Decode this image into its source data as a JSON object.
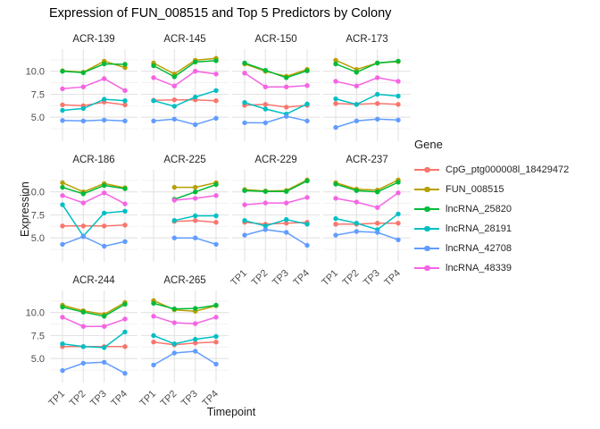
{
  "chart_data": {
    "type": "line",
    "title": "Expression of FUN_008515 and Top 5 Predictors by Colony",
    "xlabel": "Timepoint",
    "ylabel": "Expression",
    "legend_title": "Gene",
    "legend_position": "right",
    "x_categories": [
      "TP1",
      "TP2",
      "TP3",
      "TP4"
    ],
    "y_ticks": [
      10.0,
      7.5,
      5.0
    ],
    "y_tick_labels": [
      "10.0",
      "7.5",
      "5.0"
    ],
    "ylim": [
      2.4,
      12.4
    ],
    "grid": "on",
    "y_major_gridlines": [
      5.0,
      7.5,
      10.0
    ],
    "y_minor_gridlines": [
      3.75,
      6.25,
      8.75,
      11.25
    ],
    "grid_major_color": "#e3e3e3",
    "grid_minor_color": "#f0f0f0",
    "series": [
      {
        "name": "CpG_ptg000008l_18429472",
        "color": "#F8766D"
      },
      {
        "name": "FUN_008515",
        "color": "#B79F00"
      },
      {
        "name": "lncRNA_25820",
        "color": "#00BA38"
      },
      {
        "name": "lncRNA_28191",
        "color": "#00BFC4"
      },
      {
        "name": "lncRNA_42708",
        "color": "#619CFF"
      },
      {
        "name": "lncRNA_48339",
        "color": "#F564E3"
      }
    ],
    "facets": [
      {
        "label": "ACR-139",
        "values": [
          [
            6.35,
            6.25,
            6.65,
            6.35
          ],
          [
            10.05,
            9.9,
            11.1,
            10.4
          ],
          [
            10.0,
            9.85,
            10.8,
            10.75
          ],
          [
            5.75,
            5.95,
            6.95,
            6.8
          ],
          [
            4.65,
            4.6,
            4.7,
            4.6
          ],
          [
            8.1,
            8.3,
            9.2,
            7.9
          ]
        ]
      },
      {
        "label": "ACR-145",
        "values": [
          [
            6.85,
            6.9,
            6.9,
            6.8
          ],
          [
            10.9,
            9.7,
            11.2,
            11.4
          ],
          [
            10.6,
            9.4,
            11.0,
            11.15
          ],
          [
            6.8,
            6.2,
            7.2,
            7.9
          ],
          [
            4.6,
            4.8,
            4.2,
            4.9
          ],
          [
            9.3,
            8.4,
            10.0,
            9.7
          ]
        ]
      },
      {
        "label": "ACR-150",
        "values": [
          [
            6.3,
            6.4,
            6.1,
            6.3
          ],
          [
            10.8,
            10.0,
            9.45,
            10.2
          ],
          [
            10.9,
            10.1,
            9.3,
            10.05
          ],
          [
            6.6,
            5.9,
            5.35,
            6.45
          ],
          [
            4.4,
            4.4,
            5.1,
            4.6
          ],
          [
            9.8,
            8.3,
            8.3,
            8.45
          ]
        ]
      },
      {
        "label": "ACR-173",
        "values": [
          [
            6.5,
            6.4,
            6.5,
            6.4
          ],
          [
            11.2,
            10.2,
            10.9,
            11.05
          ],
          [
            10.8,
            9.9,
            10.9,
            11.1
          ],
          [
            7.0,
            6.4,
            7.5,
            7.3
          ],
          [
            3.9,
            4.6,
            4.8,
            4.7
          ],
          [
            8.9,
            8.4,
            9.3,
            8.9
          ]
        ]
      },
      {
        "label": "ACR-186",
        "values": [
          [
            6.3,
            6.3,
            6.3,
            6.4
          ],
          [
            11.0,
            10.0,
            10.9,
            10.45
          ],
          [
            10.5,
            9.8,
            10.7,
            10.35
          ],
          [
            8.6,
            5.2,
            7.7,
            7.9
          ],
          [
            4.3,
            5.15,
            4.1,
            4.6
          ],
          [
            9.6,
            8.8,
            9.9,
            8.7
          ]
        ]
      },
      {
        "label": "ACR-225",
        "values": [
          [
            null,
            6.8,
            6.9,
            6.7
          ],
          [
            null,
            10.5,
            10.5,
            11.0
          ],
          [
            null,
            9.2,
            10.0,
            10.8
          ],
          [
            null,
            6.9,
            7.4,
            7.4
          ],
          [
            null,
            5.0,
            5.0,
            4.3
          ],
          [
            null,
            9.1,
            9.3,
            9.6
          ]
        ]
      },
      {
        "label": "ACR-229",
        "values": [
          [
            6.7,
            6.5,
            6.6,
            6.7
          ],
          [
            10.25,
            10.1,
            10.15,
            11.3
          ],
          [
            10.15,
            10.05,
            10.05,
            11.2
          ],
          [
            6.9,
            6.3,
            7.0,
            6.5
          ],
          [
            5.3,
            5.9,
            5.6,
            4.2
          ],
          [
            8.6,
            8.8,
            8.8,
            9.4
          ]
        ]
      },
      {
        "label": "ACR-237",
        "values": [
          [
            6.5,
            6.5,
            6.6,
            6.6
          ],
          [
            11.0,
            10.3,
            10.2,
            11.3
          ],
          [
            10.85,
            10.15,
            10.0,
            11.05
          ],
          [
            7.1,
            6.6,
            5.9,
            7.6
          ],
          [
            5.3,
            5.7,
            5.6,
            4.8
          ],
          [
            9.3,
            8.9,
            8.3,
            9.9
          ]
        ]
      },
      {
        "label": "ACR-244",
        "values": [
          [
            6.3,
            6.3,
            6.3,
            6.3
          ],
          [
            10.8,
            10.2,
            9.8,
            11.1
          ],
          [
            10.6,
            10.05,
            9.6,
            10.9
          ],
          [
            6.6,
            6.3,
            6.2,
            7.9
          ],
          [
            3.7,
            4.5,
            4.6,
            3.4
          ],
          [
            9.5,
            8.5,
            8.5,
            9.3
          ]
        ]
      },
      {
        "label": "ACR-265",
        "values": [
          [
            6.8,
            6.5,
            6.7,
            6.8
          ],
          [
            11.3,
            10.3,
            10.15,
            10.75
          ],
          [
            11.0,
            10.4,
            10.45,
            10.8
          ],
          [
            7.5,
            6.6,
            7.1,
            7.4
          ],
          [
            4.3,
            5.6,
            5.8,
            4.4
          ],
          [
            9.6,
            8.9,
            8.8,
            9.5
          ]
        ]
      }
    ]
  }
}
